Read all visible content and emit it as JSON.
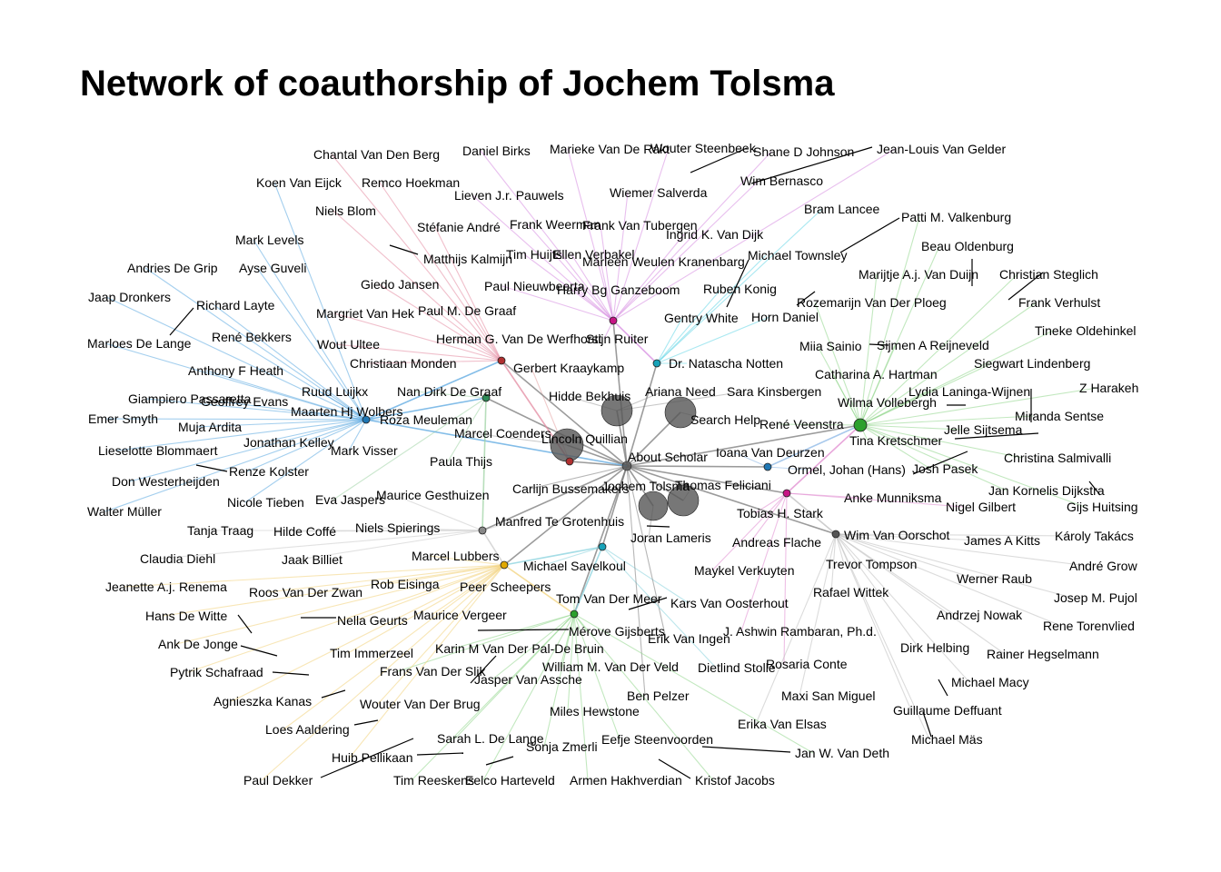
{
  "title": "Network of coauthorship of Jochem Tolsma",
  "colors": {
    "background": "#ffffff",
    "text": "#000000",
    "hub_nodes": "#555555",
    "leader_lines": "#000000"
  },
  "hubs": [
    {
      "id": "jt",
      "label": "Jochem Tolsma",
      "color": "#555555",
      "size": "large"
    },
    {
      "id": "mj",
      "label": "Marcel Coenders",
      "color": "#666666",
      "size": "large"
    },
    {
      "id": "an",
      "label": "Ariana Need",
      "color": "#666666",
      "size": "large"
    },
    {
      "id": "sh",
      "label": "Search Help",
      "color": "#666666",
      "size": "large"
    },
    {
      "id": "tf",
      "label": "Thomas Feliciani",
      "color": "#666666",
      "size": "large"
    },
    {
      "id": "jl",
      "label": "Joran Lameris",
      "color": "#666666",
      "size": "large"
    },
    {
      "id": "mh",
      "label": "Maarten Hj Wolbers",
      "color": "#1f77b4",
      "size": "small"
    },
    {
      "id": "hg",
      "label": "Herman G. Van De Werfhorst",
      "color": "#b03030",
      "size": "small"
    },
    {
      "id": "gk",
      "label": "Gerbert Kraaykamp",
      "color": "#b03030",
      "size": "small"
    },
    {
      "id": "nd",
      "label": "Nan Dirk De Graaf",
      "color": "#2e8b57",
      "size": "small"
    },
    {
      "id": "sr",
      "label": "Stijn Ruiter",
      "color": "#c71585",
      "size": "small"
    },
    {
      "id": "dn",
      "label": "Dr. Natascha Notten",
      "color": "#17a2b8",
      "size": "small"
    },
    {
      "id": "rv",
      "label": "René Veenstra",
      "color": "#2ca02c",
      "size": "small"
    },
    {
      "id": "ah",
      "label": "Andreas Flache",
      "color": "#c71585",
      "size": "small"
    },
    {
      "id": "wo",
      "label": "Wim Van Oorschot",
      "color": "#555555",
      "size": "small"
    },
    {
      "id": "mt",
      "label": "Manfred Te Grotenhuis",
      "color": "#888888",
      "size": "small"
    },
    {
      "id": "ml",
      "label": "Marcel Lubbers",
      "color": "#e0a800",
      "size": "small"
    },
    {
      "id": "ms",
      "label": "Michael Savelkoul",
      "color": "#17a2b8",
      "size": "small"
    },
    {
      "id": "mg",
      "label": "Mérove Gijsberts",
      "color": "#2ca02c",
      "size": "small"
    },
    {
      "id": "ik",
      "label": "Ioana Van Deurzen",
      "color": "#1f77b4",
      "size": "small"
    }
  ],
  "labels": [
    "Chantal Van Den Berg",
    "Daniel Birks",
    "Marieke Van De Rakt",
    "Wouter Steenbeek",
    "Shane D Johnson",
    "Jean-Louis Van Gelder",
    "Koen Van Eijck",
    "Remco Hoekman",
    "Lieven J.r. Pauwels",
    "Wiemer Salverda",
    "Wim Bernasco",
    "Niels Blom",
    "Stéfanie André",
    "Frank Weerman",
    "Frank Van Tubergen",
    "Ingrid K. Van Dijk",
    "Bram Lancee",
    "Patti M. Valkenburg",
    "Mark Levels",
    "Matthijs Kalmijn",
    "Tim Huijts",
    "Ellen Verbakel",
    "Marleen Weulen Kranenbarg",
    "Michael Townsley",
    "Beau Oldenburg",
    "Andries De Grip",
    "Ayse Guveli",
    "Marijtje A.j. Van Duijn",
    "Christian Steglich",
    "Jaap Dronkers",
    "Giedo Jansen",
    "Paul Nieuwbeerta",
    "Harry Bg Ganzeboom",
    "Ruben Konig",
    "Frank Verhulst",
    "Richard Layte",
    "Margriet Van Hek",
    "Paul M. De Graaf",
    "Gentry White",
    "Horn Daniel",
    "Rozemarijn Van Der Ploeg",
    "Tineke Oldehinkel",
    "Marloes De Lange",
    "René Bekkers",
    "Wout Ultee",
    "Herman G. Van De Werfhorst",
    "Stijn Ruiter",
    "Miia Sainio",
    "Sijmen A Reijneveld",
    "Anthony F Heath",
    "Christiaan Monden",
    "Gerbert Kraaykamp",
    "Dr. Natascha Notten",
    "Siegwart Lindenberg",
    "Catharina A. Hartman",
    "Z Harakeh",
    "Ruud Luijkx",
    "Giampiero Passaretta",
    "Geoffrey Evans",
    "Nan Dirk De Graaf",
    "Hidde Bekhuis",
    "Ariana Need",
    "Sara Kinsbergen",
    "Lydia Laninga-Wijnen",
    "Wilma Vollebergh",
    "Emer Smyth",
    "Maarten Hj Wolbers",
    "Roza Meuleman",
    "Search Help",
    "René Veenstra",
    "Miranda Sentse",
    "Muja Ardita",
    "Jelle Sijtsema",
    "Marcel Coenders",
    "Lincoln Quillian",
    "Tina Kretschmer",
    "Lieselotte Blommaert",
    "Jonathan Kelley",
    "Mark Visser",
    "About Scholar",
    "Ioana Van Deurzen",
    "Christina Salmivalli",
    "Renze Kolster",
    "Paula Thijs",
    "Ormel, Johan (Hans)",
    "Josh Pasek",
    "Don Westerheijden",
    "Jochem Tolsma",
    "Thomas Feliciani",
    "Jan Kornelis Dijkstra",
    "Carlijn Bussemakers",
    "Nicole Tieben",
    "Eva Jaspers",
    "Maurice Gesthuizen",
    "Anke Munniksma",
    "Nigel Gilbert",
    "Gijs Huitsing",
    "Walter Müller",
    "Tobias H. Stark",
    "Manfred Te Grotenhuis",
    "Tanja Traag",
    "Hilde Coffé",
    "Niels Spierings",
    "Joran Lameris",
    "Wim Van Oorschot",
    "James A Kitts",
    "Károly Takács",
    "Andreas Flache",
    "Claudia Diehl",
    "Jaak Billiet",
    "Marcel Lubbers",
    "Trevor Tompson",
    "André Grow",
    "Michael Savelkoul",
    "Maykel Verkuyten",
    "Jeanette A.j. Renema",
    "Werner Raub",
    "Rob Eisinga",
    "Roos Van Der Zwan",
    "Peer Scheepers",
    "Rafael Wittek",
    "Josep M. Pujol",
    "Tom Van Der Meer",
    "Kars Van Oosterhout",
    "Hans De Witte",
    "Nella Geurts",
    "Maurice Vergeer",
    "Andrzej Nowak",
    "Rene Torenvlied",
    "Mérove Gijsberts",
    "J. Ashwin Rambaran, Ph.d.",
    "Erik Van Ingen",
    "Ank De Jonge",
    "Tim Immerzeel",
    "Karin M Van Der Pal-De Bruin",
    "Dirk Helbing",
    "Rainer Hegselmann",
    "Pytrik Schafraad",
    "Frans Van Der Slik",
    "William M. Van Der Veld",
    "Dietlind Stolle",
    "Rosaria Conte",
    "Jasper Van Assche",
    "Michael Macy",
    "Agnieszka Kanas",
    "Wouter Van Der Brug",
    "Ben Pelzer",
    "Maxi San Miguel",
    "Miles Hewstone",
    "Guillaume Deffuant",
    "Loes Aaldering",
    "Erika Van Elsas",
    "Sarah L. De Lange",
    "Eefje Steenvoorden",
    "Michael Mäs",
    "Huib Pellikaan",
    "Sonja Zmerli",
    "Jan W. Van Deth",
    "Paul Dekker",
    "Tim Reeskens",
    "Eelco Harteveld",
    "Armen Hakhverdian",
    "Kristof Jacobs"
  ]
}
